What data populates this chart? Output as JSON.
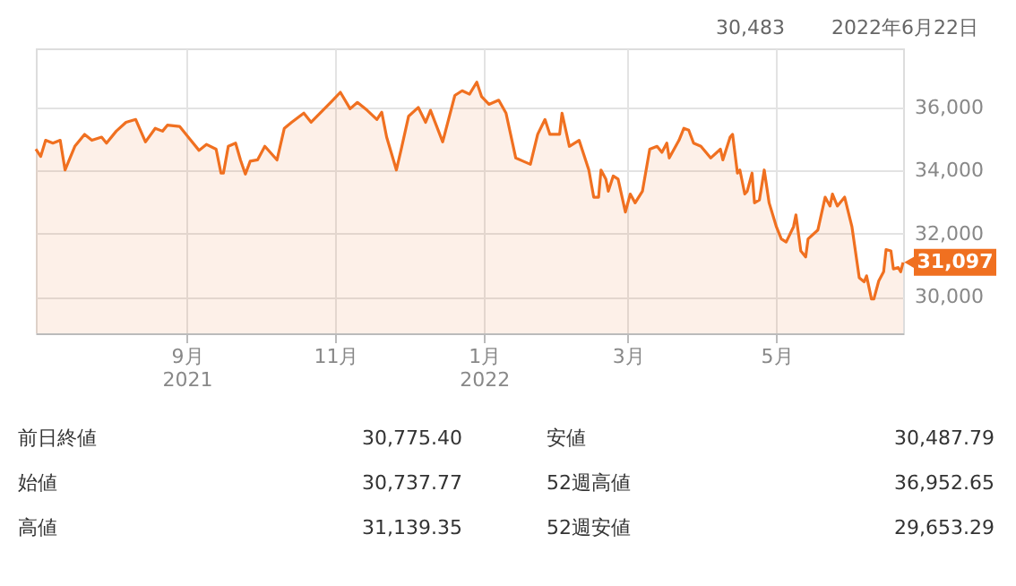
{
  "chart_data": {
    "type": "area",
    "x": [
      "2021-07-01",
      "2021-07-03",
      "2021-07-05",
      "2021-07-08",
      "2021-07-11",
      "2021-07-13",
      "2021-07-17",
      "2021-07-21",
      "2021-07-24",
      "2021-07-28",
      "2021-07-30",
      "2021-08-03",
      "2021-08-07",
      "2021-08-11",
      "2021-08-15",
      "2021-08-19",
      "2021-08-22",
      "2021-08-24",
      "2021-08-29",
      "2021-09-02",
      "2021-09-06",
      "2021-09-09",
      "2021-09-13",
      "2021-09-15",
      "2021-09-16",
      "2021-09-18",
      "2021-09-21",
      "2021-09-23",
      "2021-09-25",
      "2021-09-27",
      "2021-09-30",
      "2021-10-03",
      "2021-10-08",
      "2021-10-11",
      "2021-10-14",
      "2021-10-19",
      "2021-10-22",
      "2021-10-28",
      "2021-10-30",
      "2021-11-03",
      "2021-11-07",
      "2021-11-10",
      "2021-11-14",
      "2021-11-18",
      "2021-11-20",
      "2021-11-22",
      "2021-11-26",
      "2021-11-28",
      "2021-12-01",
      "2021-12-05",
      "2021-12-08",
      "2021-12-10",
      "2021-12-15",
      "2021-12-20",
      "2021-12-23",
      "2021-12-26",
      "2021-12-29",
      "2021-12-31",
      "2022-01-03",
      "2022-01-07",
      "2022-01-10",
      "2022-01-14",
      "2022-01-17",
      "2022-01-20",
      "2022-01-23",
      "2022-01-26",
      "2022-01-28",
      "2022-02-01",
      "2022-02-02",
      "2022-02-05",
      "2022-02-09",
      "2022-02-13",
      "2022-02-15",
      "2022-02-17",
      "2022-02-18",
      "2022-02-20",
      "2022-02-21",
      "2022-02-23",
      "2022-02-25",
      "2022-02-28",
      "2022-03-02",
      "2022-03-04",
      "2022-03-07",
      "2022-03-10",
      "2022-03-13",
      "2022-03-15",
      "2022-03-17",
      "2022-03-18",
      "2022-03-22",
      "2022-03-24",
      "2022-03-26",
      "2022-03-28",
      "2022-03-31",
      "2022-04-04",
      "2022-04-08",
      "2022-04-09",
      "2022-04-12",
      "2022-04-13",
      "2022-04-15",
      "2022-04-16",
      "2022-04-18",
      "2022-04-19",
      "2022-04-21",
      "2022-04-22",
      "2022-04-24",
      "2022-04-26",
      "2022-04-28",
      "2022-05-01",
      "2022-05-03",
      "2022-05-05",
      "2022-05-08",
      "2022-05-09",
      "2022-05-11",
      "2022-05-13",
      "2022-05-14",
      "2022-05-18",
      "2022-05-21",
      "2022-05-23",
      "2022-05-24",
      "2022-05-26",
      "2022-05-29",
      "2022-06-01",
      "2022-06-04",
      "2022-06-06",
      "2022-06-07",
      "2022-06-09",
      "2022-06-10",
      "2022-06-12",
      "2022-06-14",
      "2022-06-15",
      "2022-06-17",
      "2022-06-18",
      "2022-06-20",
      "2022-06-21",
      "2022-06-22"
    ],
    "series": [
      {
        "color": "#f07020",
        "values": [
          34680,
          34450,
          34960,
          34870,
          34960,
          34020,
          34770,
          35150,
          34960,
          35060,
          34870,
          35250,
          35530,
          35620,
          34910,
          35340,
          35250,
          35440,
          35400,
          35020,
          34640,
          34830,
          34680,
          33920,
          33920,
          34770,
          34870,
          34340,
          33890,
          34300,
          34340,
          34770,
          34340,
          35340,
          35530,
          35820,
          35530,
          36000,
          36160,
          36480,
          35960,
          36160,
          35910,
          35620,
          35850,
          35060,
          34020,
          34680,
          35720,
          36000,
          35530,
          35910,
          34910,
          36380,
          36530,
          36420,
          36800,
          36340,
          36100,
          36230,
          35820,
          34400,
          34300,
          34200,
          35150,
          35620,
          35150,
          35150,
          35820,
          34770,
          34960,
          34020,
          33160,
          33160,
          34020,
          33730,
          33350,
          33830,
          33730,
          32690,
          33260,
          32980,
          33350,
          34680,
          34770,
          34580,
          34870,
          34400,
          34960,
          35340,
          35280,
          34870,
          34770,
          34400,
          34680,
          34340,
          35060,
          35150,
          33920,
          34020,
          33260,
          33350,
          33920,
          32980,
          33070,
          34020,
          32980,
          32220,
          31840,
          31740,
          32220,
          32600,
          31460,
          31270,
          31840,
          32120,
          33160,
          32880,
          33260,
          32880,
          33160,
          32220,
          30610,
          30480,
          30670,
          29940,
          29940,
          30510,
          30800,
          31500,
          31460,
          30890,
          30930,
          30800,
          31097
        ],
        "value_labels": [
          null,
          null,
          null,
          null,
          null,
          null,
          null,
          null,
          null,
          null,
          null,
          null,
          null,
          null,
          null,
          null,
          null,
          null,
          null,
          null,
          null,
          null,
          null,
          null,
          null,
          null,
          null,
          null,
          null,
          null,
          null,
          null,
          null,
          null,
          null,
          null,
          null,
          null,
          null,
          null,
          null,
          null,
          null,
          null,
          null,
          null,
          null,
          null,
          null,
          null,
          null,
          null,
          null,
          null,
          null,
          null,
          null,
          null,
          null,
          null,
          null,
          null,
          null,
          null,
          null,
          null,
          null,
          null,
          null,
          null,
          null,
          null,
          null,
          null,
          null,
          null,
          null,
          null,
          null,
          null,
          null,
          null,
          null,
          null,
          null,
          null,
          null,
          null,
          null,
          null,
          null,
          null,
          null,
          null,
          null,
          null,
          null,
          null,
          null,
          null,
          null,
          null,
          null,
          null,
          null,
          null,
          null,
          null,
          null,
          null,
          null,
          null,
          null,
          null,
          null,
          null,
          null,
          null,
          null,
          null,
          null,
          null,
          null,
          null,
          null,
          null,
          null,
          null,
          null,
          null,
          null,
          null,
          null,
          null,
          "31,097"
        ]
      }
    ],
    "xlim": [
      "2021-07-01",
      "2022-06-22"
    ],
    "xticks": [
      {
        "value": "2021-09-01",
        "label": "9月\n2021"
      },
      {
        "value": "2021-11-01",
        "label": "11月"
      },
      {
        "value": "2022-01-01",
        "label": "1月\n2022"
      },
      {
        "value": "2022-03-01",
        "label": "3月"
      },
      {
        "value": "2022-05-01",
        "label": "5月"
      }
    ],
    "ylim": [
      28850,
      37870
    ],
    "yticks": [
      {
        "value": 30000,
        "label": "30,000"
      },
      {
        "value": 32000,
        "label": "32,000"
      },
      {
        "value": 34000,
        "label": "34,000"
      },
      {
        "value": 36000,
        "label": "36,000"
      }
    ],
    "grid": true,
    "annotations": [
      "30,483",
      "2022年6月22日",
      "前日終値",
      "30,775.40",
      "安値",
      "30,487.79",
      "始値",
      "30,737.77",
      "52週高値",
      "36,952.65",
      "高値",
      "31,139.35",
      "52週安値",
      "29,653.29"
    ]
  }
}
